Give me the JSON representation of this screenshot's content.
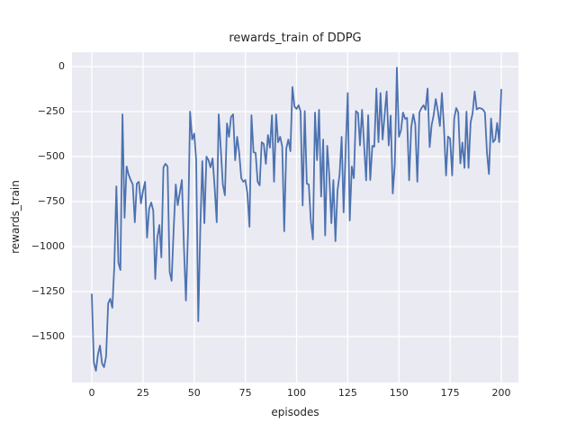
{
  "figure": {
    "title": "rewards_train of DDPG",
    "xlabel": "episodes",
    "ylabel": "rewards_train"
  },
  "chart_data": {
    "type": "line",
    "title": "rewards_train of DDPG",
    "xlabel": "episodes",
    "ylabel": "rewards_train",
    "grid": true,
    "legend": false,
    "style": {
      "axes_background": "#eaeaf2",
      "grid_color": "#ffffff",
      "line_color": "#4c72b0",
      "text_color": "#262626",
      "figure_background": "#ffffff",
      "line_width": 1.8,
      "grid_width": 1.3
    },
    "xticks": [
      0,
      25,
      50,
      75,
      100,
      125,
      150,
      175,
      200
    ],
    "yticks": [
      0,
      -250,
      -500,
      -750,
      -1000,
      -1250,
      -1500
    ],
    "xlim": [
      -10,
      209
    ],
    "ylim": [
      -1755,
      80
    ],
    "series": [
      {
        "name": "rewards_train",
        "x0": 0,
        "dx": 1,
        "values": [
          -1265,
          -1645,
          -1690,
          -1600,
          -1550,
          -1650,
          -1670,
          -1610,
          -1315,
          -1290,
          -1340,
          -1110,
          -665,
          -1090,
          -1130,
          -265,
          -840,
          -555,
          -600,
          -630,
          -655,
          -865,
          -650,
          -640,
          -760,
          -690,
          -640,
          -950,
          -790,
          -755,
          -800,
          -1180,
          -950,
          -880,
          -1060,
          -560,
          -540,
          -555,
          -1140,
          -1190,
          -900,
          -655,
          -770,
          -700,
          -630,
          -1005,
          -1300,
          -920,
          -250,
          -405,
          -372,
          -520,
          -1415,
          -888,
          -525,
          -870,
          -500,
          -520,
          -560,
          -510,
          -670,
          -865,
          -265,
          -455,
          -655,
          -715,
          -315,
          -390,
          -280,
          -265,
          -520,
          -390,
          -480,
          -620,
          -640,
          -630,
          -705,
          -890,
          -270,
          -475,
          -480,
          -640,
          -660,
          -420,
          -430,
          -540,
          -380,
          -450,
          -270,
          -640,
          -265,
          -420,
          -390,
          -445,
          -915,
          -455,
          -405,
          -470,
          -113,
          -222,
          -235,
          -215,
          -250,
          -772,
          -247,
          -650,
          -655,
          -860,
          -960,
          -255,
          -520,
          -240,
          -722,
          -405,
          -938,
          -440,
          -605,
          -870,
          -630,
          -970,
          -690,
          -600,
          -390,
          -810,
          -455,
          -147,
          -855,
          -555,
          -620,
          -247,
          -258,
          -438,
          -240,
          -438,
          -632,
          -270,
          -630,
          -440,
          -445,
          -122,
          -420,
          -147,
          -405,
          -272,
          -138,
          -438,
          -272,
          -705,
          -540,
          -5,
          -390,
          -355,
          -255,
          -290,
          -285,
          -632,
          -338,
          -265,
          -320,
          -640,
          -255,
          -230,
          -215,
          -240,
          -122,
          -447,
          -325,
          -268,
          -180,
          -247,
          -330,
          -147,
          -340,
          -605,
          -388,
          -400,
          -605,
          -288,
          -230,
          -255,
          -538,
          -422,
          -563,
          -250,
          -563,
          -310,
          -260,
          -138,
          -238,
          -230,
          -232,
          -238,
          -255,
          -480,
          -597,
          -288,
          -420,
          -405,
          -313,
          -420,
          -128
        ]
      }
    ]
  }
}
